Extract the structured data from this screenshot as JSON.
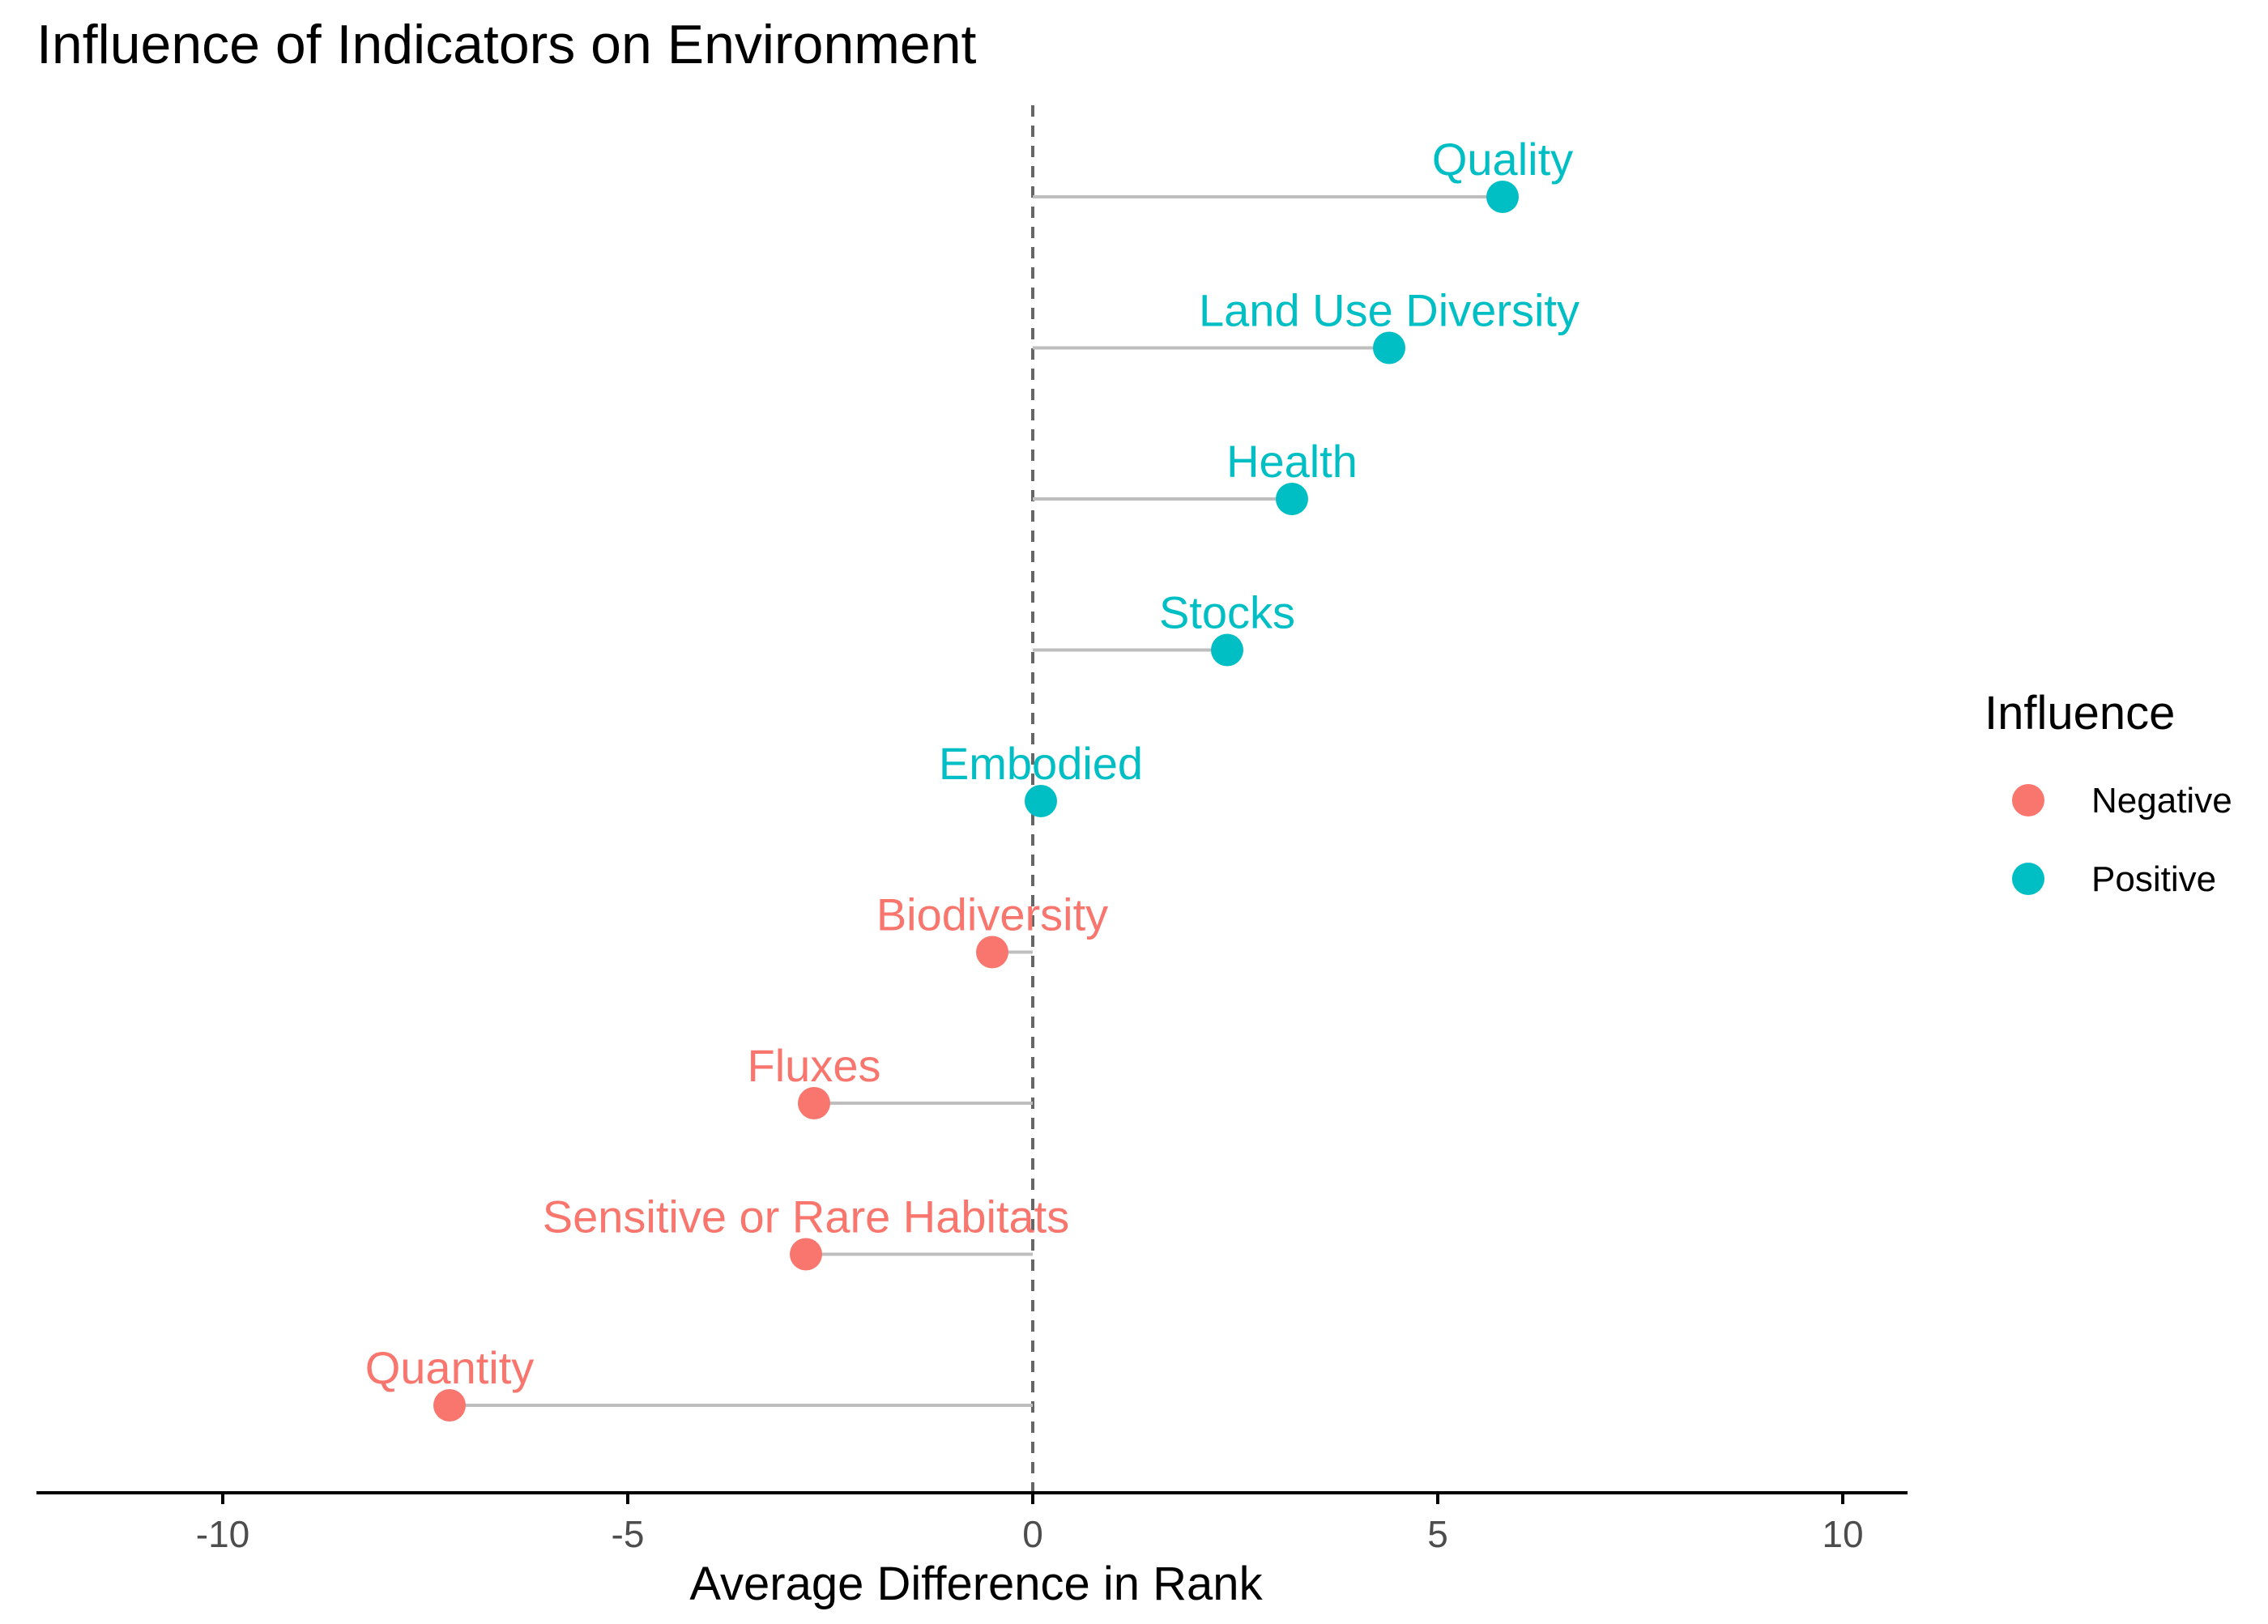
{
  "chart_data": {
    "type": "lollipop",
    "title": "Influence of Indicators on Environment",
    "xlabel": "Average Difference in Rank",
    "ylabel": "",
    "xlim": [
      -10,
      10
    ],
    "xticks": [
      -10,
      -5,
      0,
      5,
      10
    ],
    "xtick_labels": [
      "-10",
      "-5",
      "0",
      "5",
      "10"
    ],
    "reference_line": 0,
    "grid": false,
    "legend": {
      "title": "Influence",
      "position": "right",
      "entries": [
        {
          "label": "Negative",
          "color": "#F8766D"
        },
        {
          "label": "Positive",
          "color": "#00BFC4"
        }
      ]
    },
    "points": [
      {
        "label": "Quality",
        "value": 5.8,
        "influence": "Positive"
      },
      {
        "label": "Land Use Diversity",
        "value": 4.4,
        "influence": "Positive"
      },
      {
        "label": "Health",
        "value": 3.2,
        "influence": "Positive"
      },
      {
        "label": "Stocks",
        "value": 2.4,
        "influence": "Positive"
      },
      {
        "label": "Embodied",
        "value": 0.1,
        "influence": "Positive"
      },
      {
        "label": "Biodiversity",
        "value": -0.5,
        "influence": "Negative"
      },
      {
        "label": "Fluxes",
        "value": -2.7,
        "influence": "Negative"
      },
      {
        "label": "Sensitive or Rare Habitats",
        "value": -2.8,
        "influence": "Negative"
      },
      {
        "label": "Quantity",
        "value": -7.2,
        "influence": "Negative"
      }
    ]
  },
  "colors": {
    "negative": "#F8766D",
    "positive": "#00BFC4",
    "segment": "#BEBEBE",
    "reference": "#666666",
    "axis": "#000000",
    "tick_text": "#4D4D4D"
  }
}
